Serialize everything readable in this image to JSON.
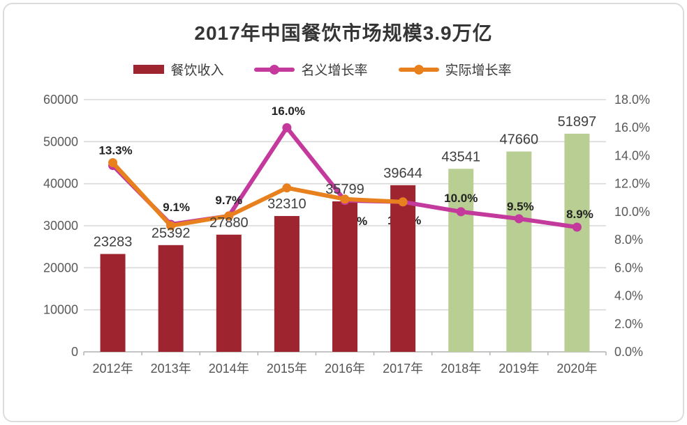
{
  "card": {
    "title": "2017年中国餐饮市场规模3.9万亿"
  },
  "legend": {
    "items": [
      {
        "label": "餐饮收入",
        "swatch": "bar",
        "color": "#9e2530"
      },
      {
        "label": "名义增长率",
        "swatch": "line-dot",
        "color": "#c4399c"
      },
      {
        "label": "实际增长率",
        "swatch": "line-dot",
        "color": "#e8811d"
      }
    ]
  },
  "chart_data": {
    "type": "combo-bar-line",
    "title": "2017年中国餐饮市场规模3.9万亿",
    "categories": [
      "2012年",
      "2013年",
      "2014年",
      "2015年",
      "2016年",
      "2017年",
      "2018年",
      "2019年",
      "2020年"
    ],
    "bar_series": {
      "name": "餐饮收入",
      "axis": "left",
      "values": [
        23283,
        25392,
        27880,
        32310,
        35799,
        39644,
        43541,
        47660,
        51897
      ],
      "value_labels": [
        "23283",
        "25392",
        "27880",
        "32310",
        "35799",
        "39644",
        "43541",
        "47660",
        "51897"
      ],
      "bar_colors": [
        "#9e2530",
        "#9e2530",
        "#9e2530",
        "#9e2530",
        "#9e2530",
        "#9e2530",
        "#b8ce93",
        "#b8ce93",
        "#b8ce93"
      ]
    },
    "line_series": [
      {
        "name": "名义增长率",
        "axis": "right",
        "color": "#c4399c",
        "values": [
          13.3,
          9.1,
          9.7,
          16.0,
          10.8,
          10.7,
          10.0,
          9.5,
          8.9
        ],
        "point_labels": [
          "13.3%",
          "9.1%",
          "9.7%",
          "16.0%",
          "10.8%",
          "10.7%",
          "10.0%",
          "9.5%",
          "8.9%"
        ]
      },
      {
        "name": "实际增长率",
        "axis": "right",
        "color": "#e8811d",
        "values": [
          13.5,
          9.0,
          9.7,
          11.7,
          10.9,
          10.7,
          null,
          null,
          null
        ],
        "point_labels": []
      }
    ],
    "left_axis": {
      "min": 0,
      "max": 60000,
      "ticks": [
        "0",
        "10000",
        "20000",
        "30000",
        "40000",
        "50000",
        "60000"
      ]
    },
    "right_axis": {
      "min": 0,
      "max": 18,
      "ticks": [
        "0.0%",
        "2.0%",
        "4.0%",
        "6.0%",
        "8.0%",
        "10.0%",
        "12.0%",
        "14.0%",
        "16.0%",
        "18.0%"
      ]
    },
    "grid": true,
    "legend_position": "top",
    "colors": {
      "grid_line": "#d9d9d9",
      "axis_line": "#b0b0b0",
      "axis_text": "#595959",
      "value_label_text": "#3f3f3f",
      "pct_label_text": "#222222"
    }
  }
}
